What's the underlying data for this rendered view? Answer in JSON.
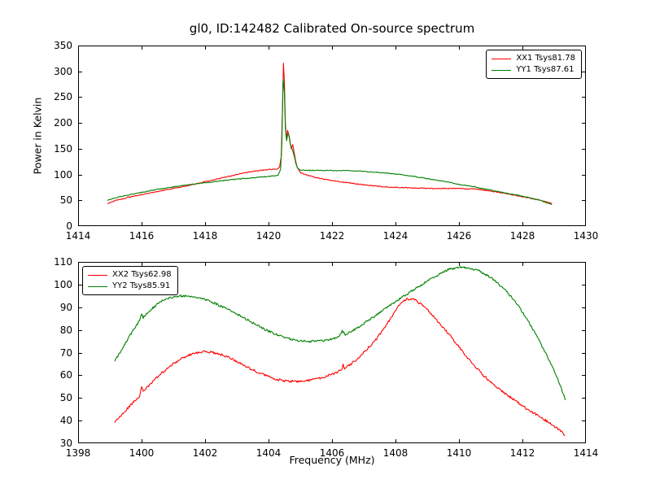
{
  "figure": {
    "title": "gl0, ID:142482 Calibrated On-source spectrum",
    "xlabel": "Frequency (MHz)",
    "ylabel": "Power in Kelvin",
    "background": "#ffffff",
    "line_colors": {
      "red": "#ff0000",
      "green": "#008000"
    }
  },
  "chart_data": [
    {
      "type": "line",
      "title": "gl0, ID:142482 Calibrated On-source spectrum",
      "ylabel": "Power in Kelvin",
      "xlabel": "",
      "xlim": [
        1414,
        1430
      ],
      "ylim": [
        0,
        350
      ],
      "xticks": [
        1414,
        1416,
        1418,
        1420,
        1422,
        1424,
        1426,
        1428,
        1430
      ],
      "yticks": [
        0,
        50,
        100,
        150,
        200,
        250,
        300,
        350
      ],
      "grid": false,
      "legend_position": "top-right",
      "series": [
        {
          "name": "XX1 Tsys81.78",
          "color": "#ff0000",
          "noise": 0.8,
          "x": [
            1414.93,
            1415.2,
            1415.6,
            1416.0,
            1416.5,
            1417.0,
            1417.5,
            1418.0,
            1418.5,
            1419.0,
            1419.3,
            1419.6,
            1419.9,
            1420.1,
            1420.25,
            1420.35,
            1420.4,
            1420.44,
            1420.47,
            1420.5,
            1420.53,
            1420.56,
            1420.6,
            1420.64,
            1420.68,
            1420.72,
            1420.76,
            1420.8,
            1420.85,
            1420.9,
            1421.0,
            1421.2,
            1421.5,
            1422.0,
            1422.5,
            1423.0,
            1423.5,
            1424.0,
            1424.5,
            1425.0,
            1425.5,
            1426.0,
            1426.5,
            1427.0,
            1427.5,
            1428.0,
            1428.5,
            1428.93
          ],
          "y": [
            44,
            50,
            56,
            61,
            67,
            73,
            79,
            86,
            93,
            100,
            104,
            107,
            109,
            110,
            110,
            115,
            135,
            230,
            315,
            280,
            200,
            170,
            185,
            178,
            160,
            150,
            158,
            145,
            128,
            115,
            104,
            99,
            94,
            88,
            84,
            80,
            77,
            75,
            74,
            73,
            73,
            73,
            72,
            68,
            63,
            57,
            51,
            44
          ]
        },
        {
          "name": "YY1 Tsys87.61",
          "color": "#008000",
          "noise": 0.8,
          "x": [
            1414.93,
            1415.3,
            1415.8,
            1416.3,
            1417.0,
            1417.7,
            1418.4,
            1419.0,
            1419.6,
            1420.1,
            1420.3,
            1420.38,
            1420.42,
            1420.46,
            1420.5,
            1420.53,
            1420.57,
            1420.61,
            1420.66,
            1420.7,
            1420.75,
            1420.8,
            1420.86,
            1420.92,
            1421.0,
            1421.3,
            1421.6,
            1422.0,
            1422.5,
            1423.0,
            1423.5,
            1424.0,
            1424.5,
            1425.0,
            1425.5,
            1426.0,
            1426.5,
            1427.0,
            1427.5,
            1428.0,
            1428.5,
            1428.93
          ],
          "y": [
            50,
            57,
            63,
            69,
            76,
            82,
            87,
            91,
            94,
            97,
            99,
            110,
            160,
            285,
            260,
            190,
            165,
            180,
            172,
            155,
            148,
            138,
            122,
            112,
            108,
            108,
            108,
            108,
            107.5,
            106,
            104,
            101,
            97,
            92,
            87,
            81,
            76,
            70,
            64,
            58,
            51,
            42
          ]
        }
      ]
    },
    {
      "type": "line",
      "title": "",
      "ylabel": "",
      "xlabel": "Frequency (MHz)",
      "xlim": [
        1398,
        1414
      ],
      "ylim": [
        30,
        110
      ],
      "xticks": [
        1398,
        1400,
        1402,
        1404,
        1406,
        1408,
        1410,
        1412,
        1414
      ],
      "yticks": [
        30,
        40,
        50,
        60,
        70,
        80,
        90,
        100,
        110
      ],
      "grid": false,
      "legend_position": "top-left",
      "series": [
        {
          "name": "XX2 Tsys62.98",
          "color": "#ff0000",
          "noise": 0.5,
          "x": [
            1399.15,
            1399.4,
            1399.7,
            1399.95,
            1400.0,
            1400.05,
            1400.4,
            1400.8,
            1401.2,
            1401.6,
            1401.9,
            1402.2,
            1402.5,
            1402.9,
            1403.3,
            1403.7,
            1404.1,
            1404.5,
            1404.9,
            1405.3,
            1405.7,
            1406.1,
            1406.3,
            1406.35,
            1406.4,
            1406.7,
            1407.0,
            1407.4,
            1407.8,
            1408.1,
            1408.35,
            1408.6,
            1408.9,
            1409.2,
            1409.6,
            1410.0,
            1410.4,
            1410.8,
            1411.2,
            1411.6,
            1412.0,
            1412.4,
            1412.8,
            1413.1,
            1413.35
          ],
          "y": [
            39.5,
            43,
            47.5,
            51,
            55,
            52.5,
            58,
            63,
            67,
            69.5,
            70.3,
            70.2,
            69.2,
            66.8,
            63.8,
            61,
            58.8,
            57.5,
            57.2,
            57.8,
            59,
            61,
            62.5,
            64.5,
            63,
            66,
            70,
            76,
            84,
            90.5,
            93.8,
            93.5,
            90.5,
            86,
            79.5,
            72.5,
            65.5,
            59.5,
            54.5,
            50.5,
            46.5,
            43,
            39.5,
            36.5,
            33.5
          ]
        },
        {
          "name": "YY2 Tsys85.91",
          "color": "#008000",
          "noise": 0.5,
          "x": [
            1399.15,
            1399.4,
            1399.7,
            1399.95,
            1400.0,
            1400.05,
            1400.3,
            1400.6,
            1400.9,
            1401.2,
            1401.5,
            1401.9,
            1402.3,
            1402.7,
            1403.1,
            1403.5,
            1403.9,
            1404.3,
            1404.7,
            1405.0,
            1405.3,
            1405.6,
            1405.9,
            1406.2,
            1406.32,
            1406.42,
            1406.7,
            1407.0,
            1407.4,
            1407.8,
            1408.2,
            1408.6,
            1409.0,
            1409.4,
            1409.7,
            1410.0,
            1410.3,
            1410.6,
            1411.0,
            1411.4,
            1411.8,
            1412.2,
            1412.6,
            1413.0,
            1413.2,
            1413.35
          ],
          "y": [
            66,
            72,
            79,
            84.5,
            87.5,
            85.5,
            89,
            92.5,
            94.3,
            95,
            94.8,
            93.8,
            91.8,
            89.3,
            86.3,
            83.2,
            80.2,
            77.7,
            76,
            75.2,
            74.9,
            75,
            75.6,
            76.8,
            79.5,
            78,
            80,
            82.8,
            86.5,
            90.5,
            94.3,
            98,
            101.5,
            104.8,
            106.8,
            107.6,
            107.4,
            106.2,
            103.2,
            98.5,
            92,
            83.5,
            73.5,
            62,
            55.5,
            49
          ]
        }
      ]
    }
  ]
}
